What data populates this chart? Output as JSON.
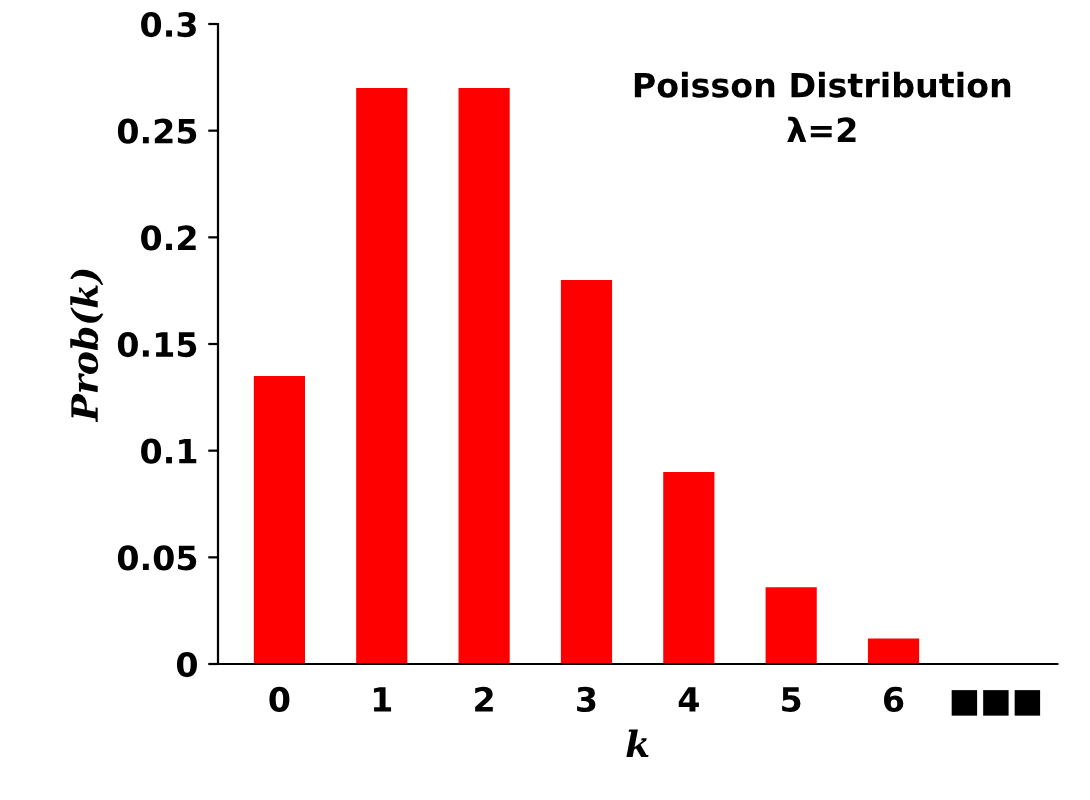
{
  "chart_data": {
    "type": "bar",
    "xlabel": "k",
    "ylabel": "Prob(k)",
    "annotations": [
      "Poisson Distribution",
      "λ=2"
    ],
    "categories": [
      "0",
      "1",
      "2",
      "3",
      "4",
      "5",
      "6",
      "■■■"
    ],
    "values": [
      0.135,
      0.27,
      0.27,
      0.18,
      0.09,
      0.036,
      0.012,
      null
    ],
    "color": "#ff0000",
    "ylim": [
      0,
      0.3
    ],
    "yticks": [
      0,
      0.05,
      0.1,
      0.15,
      0.2,
      0.25,
      0.3
    ],
    "grid": false
  }
}
